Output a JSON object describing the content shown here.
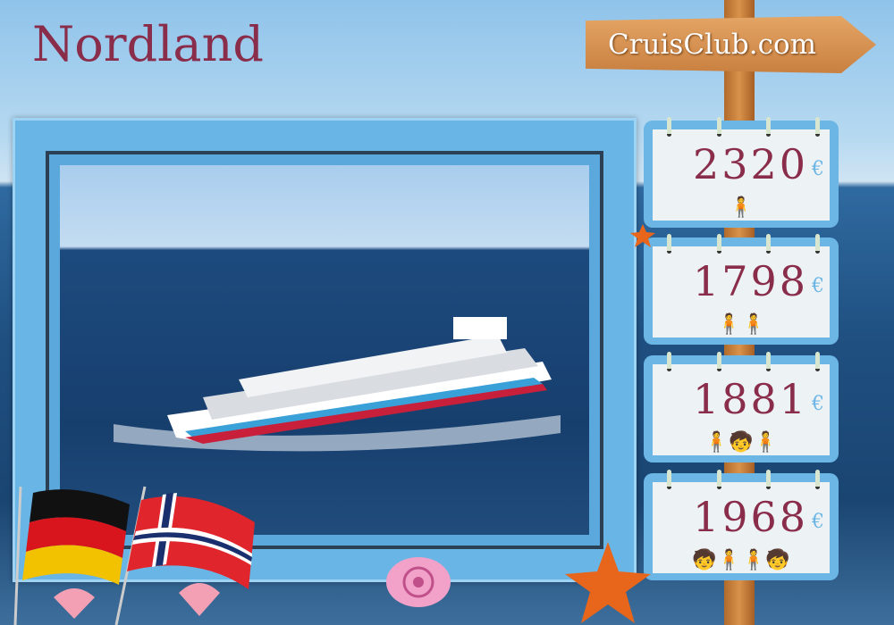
{
  "title": "Nordland",
  "brand": "CruisClub.com",
  "currency": "€",
  "prices": [
    {
      "value": "2320",
      "people": "1 adult",
      "icon": "single-person-icon"
    },
    {
      "value": "1798",
      "people": "2 adults",
      "icon": "couple-icon"
    },
    {
      "value": "1881",
      "people": "2 adults + 1 child",
      "icon": "family-small-icon"
    },
    {
      "value": "1968",
      "people": "2 adults + 2 children",
      "icon": "family-large-icon"
    }
  ],
  "flags": [
    "germany",
    "norway"
  ],
  "colors": {
    "title": "#8a2d4b",
    "frame": "#6cb6e6",
    "euro": "#6cb6e6"
  }
}
